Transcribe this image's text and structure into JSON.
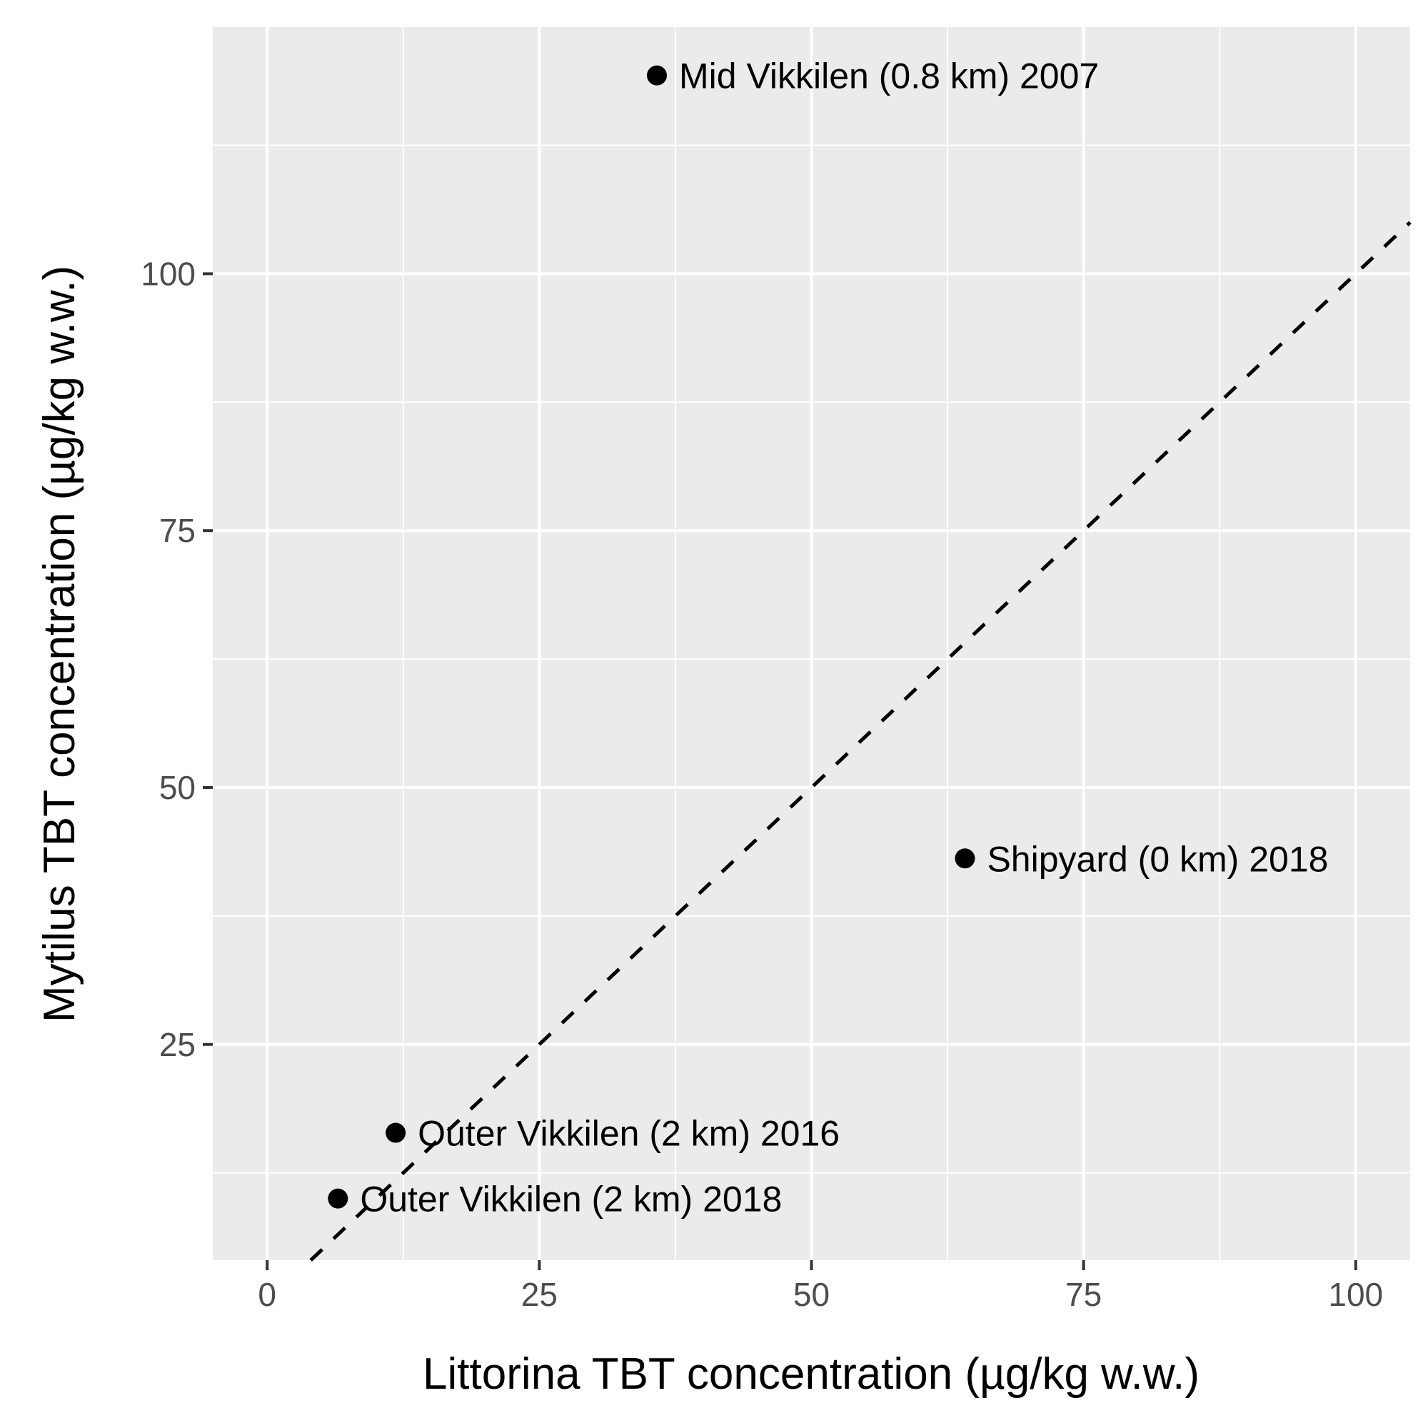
{
  "chart_data": {
    "type": "scatter",
    "xlabel": "Littorina TBT concentration (µg/kg w.w.)",
    "ylabel": "Mytilus TBT concentration (µg/kg w.w.)",
    "xlim": [
      -5,
      105
    ],
    "ylim": [
      4,
      124
    ],
    "x_ticks": [
      0,
      25,
      50,
      75,
      100
    ],
    "y_ticks": [
      25,
      50,
      75,
      100
    ],
    "x_tick_labels": [
      "0",
      "25",
      "50",
      "75",
      "100"
    ],
    "y_tick_labels": [
      "25",
      "50",
      "75",
      "100"
    ],
    "grid": true,
    "reference_line": {
      "type": "y=x",
      "style": "dashed",
      "color": "#000000"
    },
    "points": [
      {
        "x": 35.8,
        "y": 119.3,
        "label": "Mid Vikkilen (0.8 km) 2007"
      },
      {
        "x": 64.1,
        "y": 43.1,
        "label": "Shipyard (0 km) 2018"
      },
      {
        "x": 11.8,
        "y": 16.4,
        "label": "Outer Vikkilen (2 km) 2016"
      },
      {
        "x": 6.5,
        "y": 10.0,
        "label": "Outer Vikkilen (2 km) 2018"
      }
    ],
    "colors": {
      "panel_background": "#ebebeb",
      "grid": "#ffffff",
      "points": "#000000",
      "tick_text": "#4d4d4d",
      "tick_marks": "#333333"
    }
  }
}
